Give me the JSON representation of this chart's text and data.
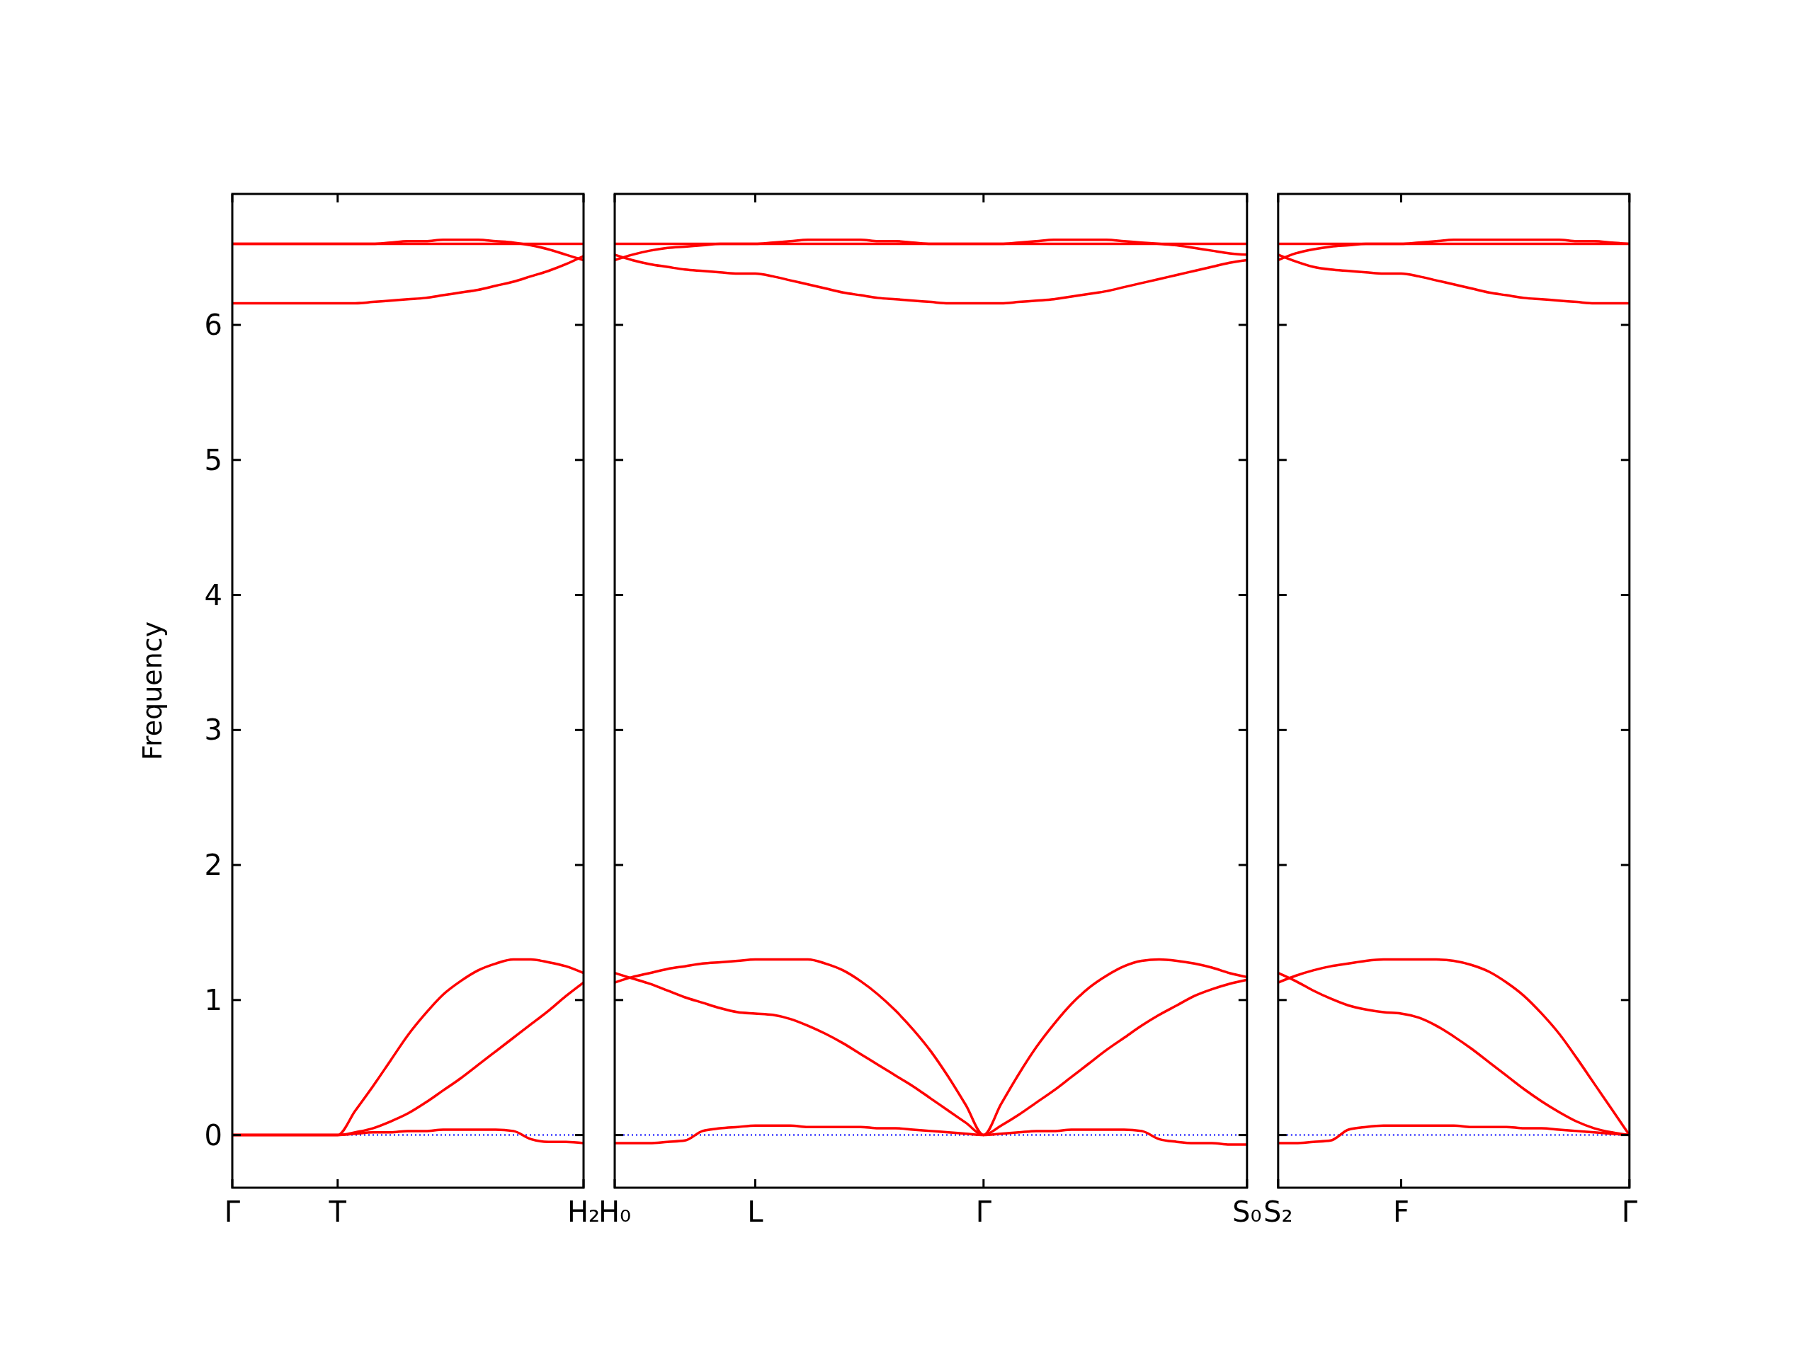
{
  "chart_data": [
    {
      "type": "line",
      "ylabel": "Frequency",
      "categories": [
        "Γ",
        null,
        null,
        null,
        null,
        null,
        "T",
        null,
        null,
        null,
        null,
        null,
        null,
        null,
        null,
        null,
        null,
        null,
        null,
        null,
        "H₂"
      ],
      "ylim": [
        -0.39,
        6.97
      ],
      "yticks": [
        0,
        1,
        2,
        3,
        4,
        5,
        6
      ],
      "ref_lines": [
        {
          "axis": "y",
          "value": 0,
          "color": "#0000ff",
          "line_style": "dotted"
        }
      ],
      "series": [
        {
          "color": "#ff0000",
          "values": [
            0,
            0,
            0,
            0,
            0,
            0,
            0,
            0.18,
            0.36,
            0.55,
            0.74,
            0.9,
            1.04,
            1.14,
            1.22,
            1.27,
            1.3,
            1.3,
            1.28,
            1.25,
            1.2
          ]
        },
        {
          "color": "#ff0000",
          "values": [
            0,
            0,
            0,
            0,
            0,
            0,
            0,
            0.02,
            0.05,
            0.1,
            0.16,
            0.24,
            0.33,
            0.42,
            0.52,
            0.62,
            0.72,
            0.82,
            0.92,
            1.03,
            1.13
          ]
        },
        {
          "color": "#ff0000",
          "values": [
            0,
            0,
            0,
            0,
            0,
            0,
            0,
            0.01,
            0.02,
            0.02,
            0.03,
            0.03,
            0.04,
            0.04,
            0.04,
            0.04,
            0.03,
            -0.03,
            -0.05,
            -0.05,
            -0.06
          ]
        },
        {
          "color": "#ff0000",
          "values": [
            6.6,
            6.6,
            6.6,
            6.6,
            6.6,
            6.6,
            6.6,
            6.6,
            6.6,
            6.6,
            6.6,
            6.6,
            6.6,
            6.6,
            6.6,
            6.6,
            6.6,
            6.6,
            6.6,
            6.6,
            6.6
          ]
        },
        {
          "color": "#ff0000",
          "values": [
            6.6,
            6.6,
            6.6,
            6.6,
            6.6,
            6.6,
            6.6,
            6.6,
            6.6,
            6.61,
            6.62,
            6.62,
            6.63,
            6.63,
            6.63,
            6.62,
            6.61,
            6.59,
            6.56,
            6.52,
            6.48
          ]
        },
        {
          "color": "#ff0000",
          "values": [
            6.16,
            6.16,
            6.16,
            6.16,
            6.16,
            6.16,
            6.16,
            6.16,
            6.17,
            6.18,
            6.19,
            6.2,
            6.22,
            6.24,
            6.26,
            6.29,
            6.32,
            6.36,
            6.4,
            6.45,
            6.51
          ]
        }
      ]
    },
    {
      "type": "line",
      "categories": [
        "H₀",
        null,
        null,
        null,
        null,
        null,
        null,
        null,
        "L",
        null,
        null,
        null,
        null,
        null,
        null,
        null,
        null,
        null,
        null,
        null,
        null,
        "Γ",
        null,
        null,
        null,
        null,
        null,
        null,
        null,
        null,
        null,
        null,
        null,
        null,
        null,
        null,
        "S₀"
      ],
      "ylim": [
        -0.39,
        6.97
      ],
      "tick_labels": "x",
      "yticks": [
        0,
        1,
        2,
        3,
        4,
        5,
        6
      ],
      "ref_lines": [
        {
          "axis": "y",
          "value": 0,
          "color": "#0000ff",
          "line_style": "dotted"
        }
      ],
      "series": [
        {
          "color": "#ff0000",
          "values": [
            1.13,
            1.17,
            1.2,
            1.23,
            1.25,
            1.27,
            1.28,
            1.29,
            1.3,
            1.3,
            1.3,
            1.3,
            1.27,
            1.22,
            1.14,
            1.04,
            0.92,
            0.78,
            0.62,
            0.43,
            0.22,
            0,
            0.23,
            0.45,
            0.65,
            0.82,
            0.97,
            1.09,
            1.18,
            1.25,
            1.29,
            1.3,
            1.29,
            1.27,
            1.24,
            1.2,
            1.17
          ]
        },
        {
          "color": "#ff0000",
          "values": [
            1.2,
            1.16,
            1.12,
            1.07,
            1.02,
            0.98,
            0.94,
            0.91,
            0.9,
            0.89,
            0.86,
            0.81,
            0.75,
            0.68,
            0.6,
            0.52,
            0.44,
            0.36,
            0.27,
            0.18,
            0.09,
            0,
            0.07,
            0.15,
            0.24,
            0.33,
            0.43,
            0.53,
            0.63,
            0.72,
            0.81,
            0.89,
            0.96,
            1.03,
            1.08,
            1.12,
            1.15
          ]
        },
        {
          "color": "#ff0000",
          "values": [
            -0.06,
            -0.06,
            -0.06,
            -0.05,
            -0.04,
            0.03,
            0.05,
            0.06,
            0.07,
            0.07,
            0.07,
            0.06,
            0.06,
            0.06,
            0.06,
            0.05,
            0.05,
            0.04,
            0.03,
            0.02,
            0.01,
            0,
            0.01,
            0.02,
            0.03,
            0.03,
            0.04,
            0.04,
            0.04,
            0.04,
            0.03,
            -0.03,
            -0.05,
            -0.06,
            -0.06,
            -0.07,
            -0.07
          ]
        },
        {
          "color": "#ff0000",
          "values": [
            6.6,
            6.6,
            6.6,
            6.6,
            6.6,
            6.6,
            6.6,
            6.6,
            6.6,
            6.6,
            6.6,
            6.6,
            6.6,
            6.6,
            6.6,
            6.6,
            6.6,
            6.6,
            6.6,
            6.6,
            6.6,
            6.6,
            6.6,
            6.6,
            6.6,
            6.6,
            6.6,
            6.6,
            6.6,
            6.6,
            6.6,
            6.6,
            6.6,
            6.6,
            6.6,
            6.6,
            6.6
          ]
        },
        {
          "color": "#ff0000",
          "values": [
            6.52,
            6.48,
            6.45,
            6.43,
            6.41,
            6.4,
            6.39,
            6.38,
            6.38,
            6.36,
            6.33,
            6.3,
            6.27,
            6.24,
            6.22,
            6.2,
            6.19,
            6.18,
            6.17,
            6.16,
            6.16,
            6.16,
            6.16,
            6.17,
            6.18,
            6.19,
            6.21,
            6.23,
            6.25,
            6.28,
            6.31,
            6.34,
            6.37,
            6.4,
            6.43,
            6.46,
            6.48
          ]
        },
        {
          "color": "#ff0000",
          "values": [
            6.48,
            6.52,
            6.55,
            6.57,
            6.58,
            6.59,
            6.6,
            6.6,
            6.6,
            6.61,
            6.62,
            6.63,
            6.63,
            6.63,
            6.63,
            6.62,
            6.62,
            6.61,
            6.6,
            6.6,
            6.6,
            6.6,
            6.6,
            6.61,
            6.62,
            6.63,
            6.63,
            6.63,
            6.63,
            6.62,
            6.61,
            6.6,
            6.59,
            6.57,
            6.55,
            6.53,
            6.52
          ]
        }
      ]
    },
    {
      "type": "line",
      "categories": [
        "S₂",
        null,
        null,
        null,
        null,
        null,
        null,
        "F",
        null,
        null,
        null,
        null,
        null,
        null,
        null,
        null,
        null,
        null,
        null,
        null,
        "Γ"
      ],
      "ylim": [
        -0.39,
        6.97
      ],
      "tick_labels": "x",
      "yticks": [
        0,
        1,
        2,
        3,
        4,
        5,
        6
      ],
      "ref_lines": [
        {
          "axis": "y",
          "value": 0,
          "color": "#0000ff",
          "line_style": "dotted"
        }
      ],
      "series": [
        {
          "color": "#ff0000",
          "values": [
            1.13,
            1.18,
            1.22,
            1.25,
            1.27,
            1.29,
            1.3,
            1.3,
            1.3,
            1.3,
            1.29,
            1.26,
            1.21,
            1.13,
            1.03,
            0.9,
            0.75,
            0.57,
            0.38,
            0.19,
            0
          ]
        },
        {
          "color": "#ff0000",
          "values": [
            1.2,
            1.14,
            1.07,
            1.01,
            0.96,
            0.93,
            0.91,
            0.9,
            0.87,
            0.81,
            0.73,
            0.64,
            0.54,
            0.44,
            0.34,
            0.25,
            0.17,
            0.1,
            0.05,
            0.02,
            0
          ]
        },
        {
          "color": "#ff0000",
          "values": [
            -0.06,
            -0.06,
            -0.05,
            -0.04,
            0.04,
            0.06,
            0.07,
            0.07,
            0.07,
            0.07,
            0.07,
            0.06,
            0.06,
            0.06,
            0.05,
            0.05,
            0.04,
            0.03,
            0.02,
            0.01,
            0
          ]
        },
        {
          "color": "#ff0000",
          "values": [
            6.6,
            6.6,
            6.6,
            6.6,
            6.6,
            6.6,
            6.6,
            6.6,
            6.6,
            6.6,
            6.6,
            6.6,
            6.6,
            6.6,
            6.6,
            6.6,
            6.6,
            6.6,
            6.6,
            6.6,
            6.6
          ]
        },
        {
          "color": "#ff0000",
          "values": [
            6.52,
            6.47,
            6.43,
            6.41,
            6.4,
            6.39,
            6.38,
            6.38,
            6.36,
            6.33,
            6.3,
            6.27,
            6.24,
            6.22,
            6.2,
            6.19,
            6.18,
            6.17,
            6.16,
            6.16,
            6.16
          ]
        },
        {
          "color": "#ff0000",
          "values": [
            6.48,
            6.53,
            6.56,
            6.58,
            6.59,
            6.6,
            6.6,
            6.6,
            6.61,
            6.62,
            6.63,
            6.63,
            6.63,
            6.63,
            6.63,
            6.63,
            6.63,
            6.62,
            6.62,
            6.61,
            6.6
          ]
        }
      ]
    }
  ]
}
